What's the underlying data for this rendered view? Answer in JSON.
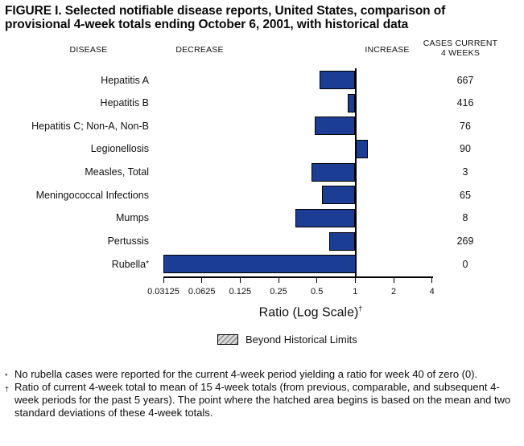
{
  "title": {
    "line1": "FIGURE I. Selected notifiable disease reports, United States, comparison of",
    "line2": "provisional 4-week totals ending October 6, 2001, with historical data"
  },
  "headers": {
    "disease": "DISEASE",
    "decrease": "DECREASE",
    "increase": "INCREASE",
    "cases_line1": "CASES CURRENT",
    "cases_line2": "4 WEEKS"
  },
  "axis": {
    "label": "Ratio (Log Scale)",
    "label_superscript": "†"
  },
  "legend": {
    "label": "Beyond Historical Limits",
    "swatch": "hatched-gray-diagonal"
  },
  "footnotes": [
    {
      "marker": "*",
      "text": "No rubella cases were reported for the current 4-week period yielding a ratio for week 40 of zero (0)."
    },
    {
      "marker": "†",
      "text": "Ratio of current 4-week total to mean of 15 4-week totals (from previous, comparable, and subsequent 4-week periods for the past 5 years). The point where the hatched area begins is based on the mean and two standard deviations of these 4-week totals."
    }
  ],
  "chart_data": {
    "type": "bar",
    "orientation": "horizontal",
    "x_scale": "log2",
    "x_tick_labels": [
      "0.03125",
      "0.0625",
      "0.125",
      "0.25",
      "0.5",
      "1",
      "2",
      "4"
    ],
    "x_tick_values": [
      0.03125,
      0.0625,
      0.125,
      0.25,
      0.5,
      1,
      2,
      4
    ],
    "xlabel": "Ratio (Log Scale)",
    "bar_color": "#1b3e94",
    "series": [
      {
        "disease": "Hepatitis A",
        "cases_current_4_weeks": "667",
        "ratio": 0.52,
        "asterisk": false
      },
      {
        "disease": "Hepatitis B",
        "cases_current_4_weeks": "416",
        "ratio": 0.87,
        "asterisk": false
      },
      {
        "disease": "Hepatitis C; Non-A, Non-B",
        "cases_current_4_weeks": "76",
        "ratio": 0.48,
        "asterisk": false
      },
      {
        "disease": "Legionellosis",
        "cases_current_4_weeks": "90",
        "ratio": 1.25,
        "asterisk": false
      },
      {
        "disease": "Measles, Total",
        "cases_current_4_weeks": "3",
        "ratio": 0.45,
        "asterisk": false
      },
      {
        "disease": "Meningococcal Infections",
        "cases_current_4_weeks": "65",
        "ratio": 0.55,
        "asterisk": false
      },
      {
        "disease": "Mumps",
        "cases_current_4_weeks": "8",
        "ratio": 0.34,
        "asterisk": false
      },
      {
        "disease": "Pertussis",
        "cases_current_4_weeks": "269",
        "ratio": 0.62,
        "asterisk": false
      },
      {
        "disease": "Rubella",
        "cases_current_4_weeks": "0",
        "ratio": 0,
        "asterisk": true
      }
    ],
    "legend_entries": [
      {
        "label": "Beyond Historical Limits",
        "swatch": "hatched"
      }
    ]
  }
}
